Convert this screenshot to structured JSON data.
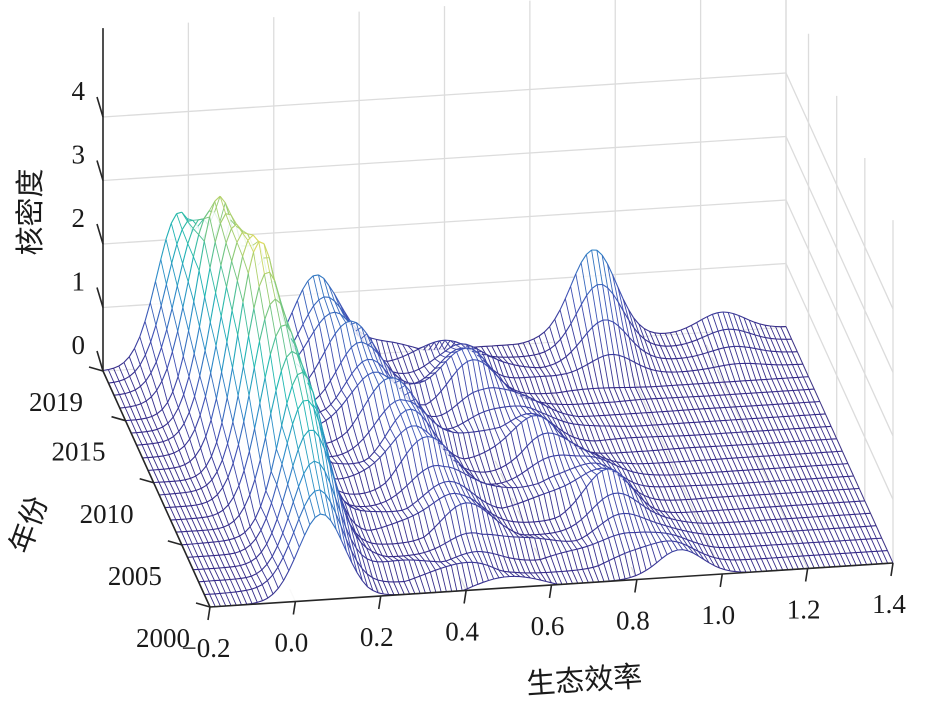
{
  "chart_data": {
    "type": "surface",
    "xlabel": "生态效率",
    "ylabel": "年份",
    "zlabel": "核密度",
    "xlim": [
      -0.2,
      1.4
    ],
    "ylim": [
      2000,
      2019
    ],
    "zlim": [
      0,
      4.5
    ],
    "xticks": [
      "−0.2",
      "0.0",
      "0.2",
      "0.4",
      "0.6",
      "0.8",
      "1.0",
      "1.2",
      "1.4"
    ],
    "yticks": [
      "2000",
      "2005",
      "2010",
      "2015",
      "2019"
    ],
    "zticks": [
      "0",
      "1",
      "2",
      "3",
      "4"
    ],
    "colormap": [
      "#352a87",
      "#3f51b5",
      "#2c8bc9",
      "#1fb8b2",
      "#7cc67a",
      "#f6e05b"
    ],
    "grid": true,
    "peaks_by_year": [
      {
        "year": 2000,
        "peaks": [
          {
            "x": 0.06,
            "z": 1.3
          },
          {
            "x": 0.9,
            "z": 0.4
          }
        ]
      },
      {
        "year": 2005,
        "peaks": [
          {
            "x": 0.08,
            "z": 2.6
          },
          {
            "x": 0.45,
            "z": 0.5
          },
          {
            "x": 0.8,
            "z": 0.7
          }
        ]
      },
      {
        "year": 2010,
        "peaks": [
          {
            "x": 0.05,
            "z": 3.7
          },
          {
            "x": 0.4,
            "z": 0.9
          },
          {
            "x": 0.7,
            "z": 0.6
          }
        ]
      },
      {
        "year": 2015,
        "peaks": [
          {
            "x": 0.02,
            "z": 3.4
          },
          {
            "x": 0.35,
            "z": 1.0
          },
          {
            "x": 0.6,
            "z": 0.8
          }
        ]
      },
      {
        "year": 2019,
        "peaks": [
          {
            "x": -0.02,
            "z": 2.4
          },
          {
            "x": 0.3,
            "z": 1.3
          },
          {
            "x": 0.95,
            "z": 1.4
          },
          {
            "x": 1.25,
            "z": 0.3
          }
        ]
      }
    ]
  }
}
